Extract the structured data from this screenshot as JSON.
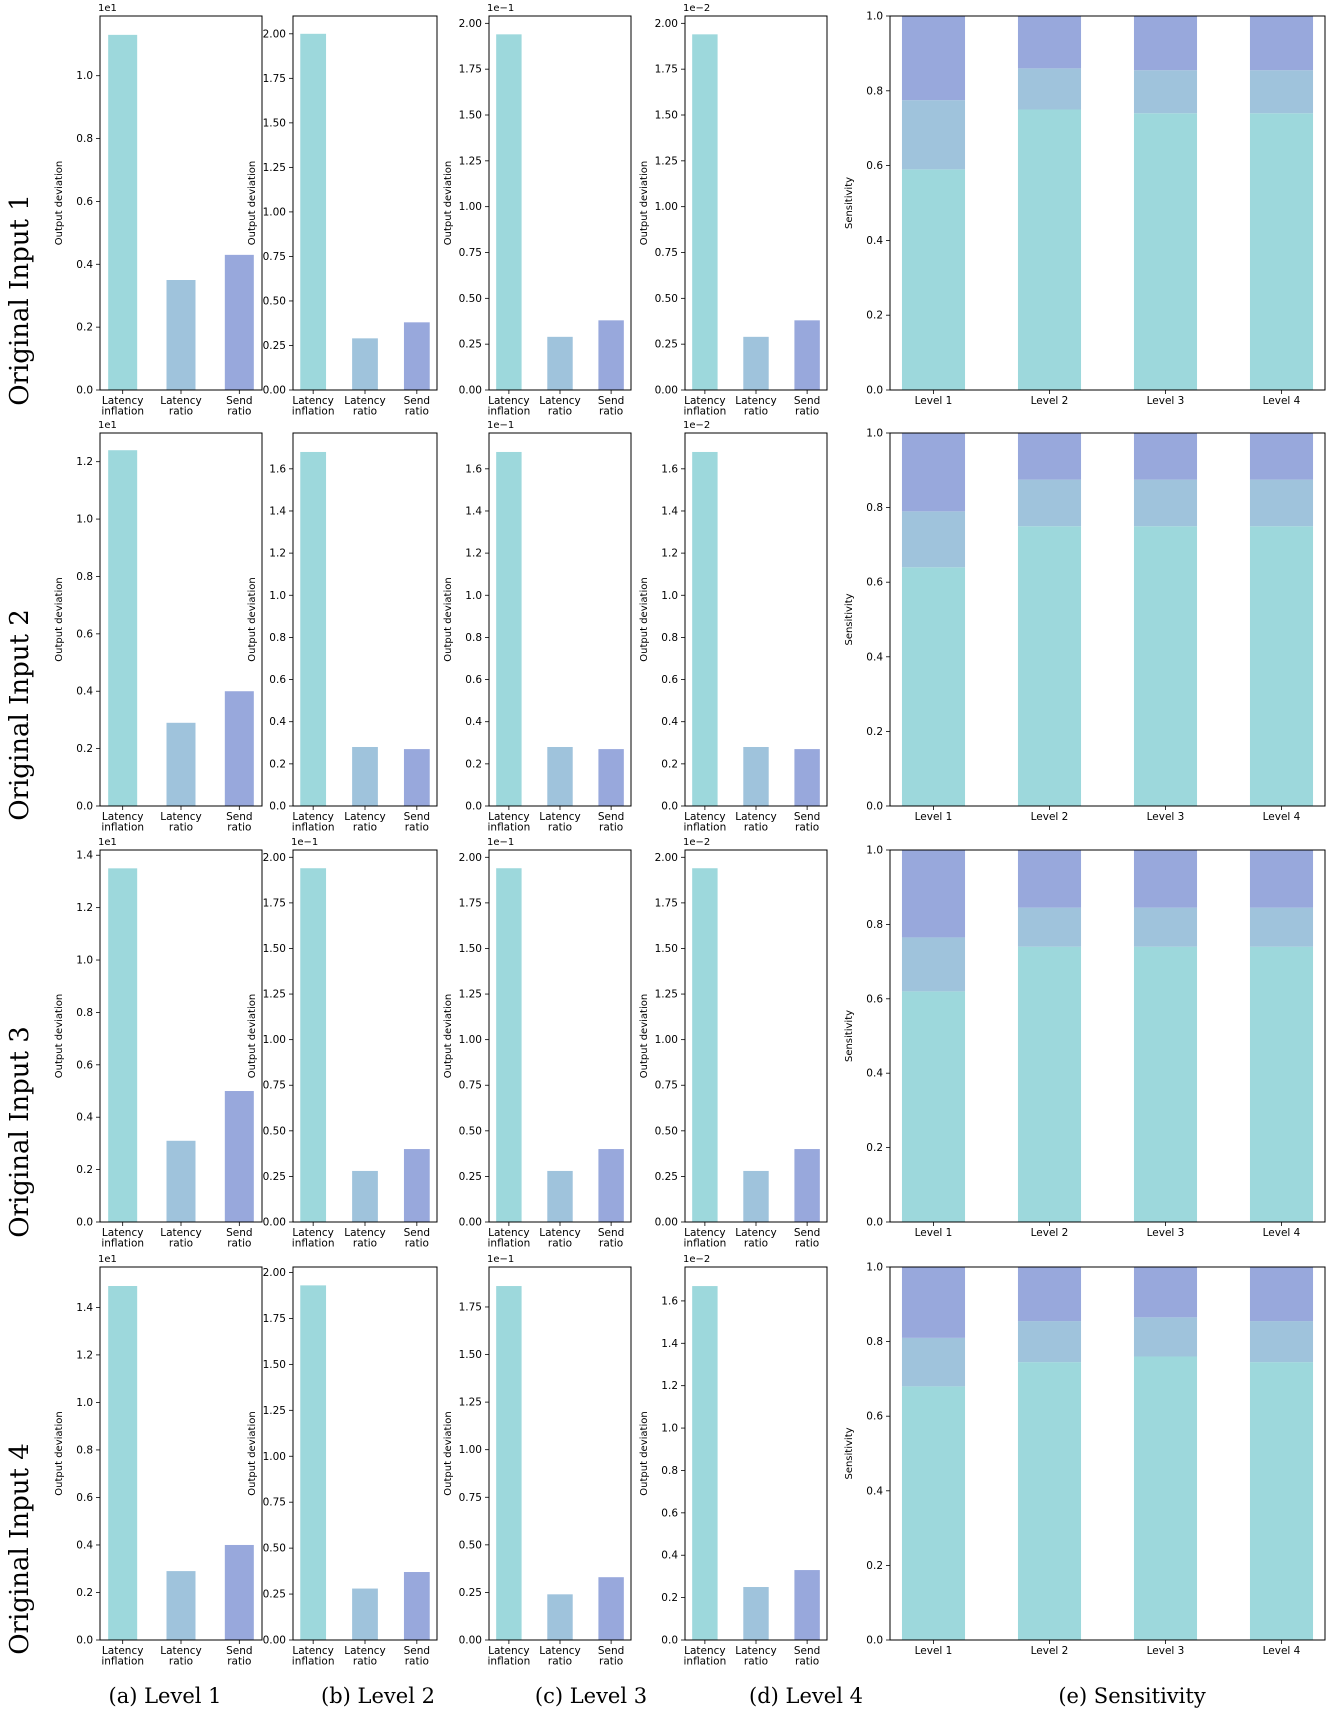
{
  "row_labels": [
    "Original Input 1",
    "Original Input 2",
    "Original Input 3",
    "Original Input 4"
  ],
  "column_captions": [
    "(a) Level 1",
    "(b) Level 2",
    "(c) Level 3",
    "(d) Level 4",
    "(e) Sensitivity"
  ],
  "colors": {
    "latency_inflation": "#9dd8dc",
    "latency_ratio": "#9fc3dc",
    "send_ratio": "#98a8dc",
    "axis": "#000000"
  },
  "deviation_ylabel": "Output deviation",
  "sensitivity_ylabel": "Sensitivity",
  "chart_data": [
    {
      "id": "r1c1",
      "type": "bar",
      "categories": [
        "Latency\ninflation",
        "Latency\nratio",
        "Send\nratio"
      ],
      "values": [
        1.13,
        0.35,
        0.43
      ],
      "ylim": [
        0,
        1.19
      ],
      "yticks": [
        0.0,
        0.2,
        0.4,
        0.6,
        0.8,
        1.0
      ],
      "ytick_labels": [
        "0.0",
        "0.2",
        "0.4",
        "0.6",
        "0.8",
        "1.0"
      ],
      "offset_label": "1e1",
      "ylabel": "Output deviation"
    },
    {
      "id": "r1c2",
      "type": "bar",
      "categories": [
        "Latency\ninflation",
        "Latency\nratio",
        "Send\nratio"
      ],
      "values": [
        2.0,
        0.29,
        0.38
      ],
      "ylim": [
        0,
        2.1
      ],
      "yticks": [
        0.0,
        0.25,
        0.5,
        0.75,
        1.0,
        1.25,
        1.5,
        1.75,
        2.0
      ],
      "ytick_labels": [
        "0.00",
        "0.25",
        "0.50",
        "0.75",
        "1.00",
        "1.25",
        "1.50",
        "1.75",
        "2.00"
      ],
      "offset_label": "",
      "ylabel": "Output deviation"
    },
    {
      "id": "r1c3",
      "type": "bar",
      "categories": [
        "Latency\ninflation",
        "Latency\nratio",
        "Send\nratio"
      ],
      "values": [
        1.94,
        0.29,
        0.38
      ],
      "ylim": [
        0,
        2.04
      ],
      "yticks": [
        0.0,
        0.25,
        0.5,
        0.75,
        1.0,
        1.25,
        1.5,
        1.75,
        2.0
      ],
      "ytick_labels": [
        "0.00",
        "0.25",
        "0.50",
        "0.75",
        "1.00",
        "1.25",
        "1.50",
        "1.75",
        "2.00"
      ],
      "offset_label": "1e−1",
      "ylabel": "Output deviation"
    },
    {
      "id": "r1c4",
      "type": "bar",
      "categories": [
        "Latency\ninflation",
        "Latency\nratio",
        "Send\nratio"
      ],
      "values": [
        1.94,
        0.29,
        0.38
      ],
      "ylim": [
        0,
        2.04
      ],
      "yticks": [
        0.0,
        0.25,
        0.5,
        0.75,
        1.0,
        1.25,
        1.5,
        1.75,
        2.0
      ],
      "ytick_labels": [
        "0.00",
        "0.25",
        "0.50",
        "0.75",
        "1.00",
        "1.25",
        "1.50",
        "1.75",
        "2.00"
      ],
      "offset_label": "1e−2",
      "ylabel": "Output deviation"
    },
    {
      "id": "r1c5",
      "type": "stacked_bar",
      "categories": [
        "Level 1",
        "Level 2",
        "Level 3",
        "Level 4"
      ],
      "series": [
        {
          "values": [
            0.59,
            0.75,
            0.74,
            0.74
          ]
        },
        {
          "values": [
            0.185,
            0.11,
            0.115,
            0.115
          ]
        },
        {
          "values": [
            0.225,
            0.14,
            0.145,
            0.145
          ]
        }
      ],
      "ylim": [
        0,
        1.0
      ],
      "yticks": [
        0.0,
        0.2,
        0.4,
        0.6,
        0.8,
        1.0
      ],
      "ytick_labels": [
        "0.0",
        "0.2",
        "0.4",
        "0.6",
        "0.8",
        "1.0"
      ],
      "ylabel": "Sensitivity"
    },
    {
      "id": "r2c1",
      "type": "bar",
      "categories": [
        "Latency\ninflation",
        "Latency\nratio",
        "Send\nratio"
      ],
      "values": [
        1.24,
        0.29,
        0.4
      ],
      "ylim": [
        0,
        1.3
      ],
      "yticks": [
        0.0,
        0.2,
        0.4,
        0.6,
        0.8,
        1.0,
        1.2
      ],
      "ytick_labels": [
        "0.0",
        "0.2",
        "0.4",
        "0.6",
        "0.8",
        "1.0",
        "1.2"
      ],
      "offset_label": "1e1",
      "ylabel": "Output deviation"
    },
    {
      "id": "r2c2",
      "type": "bar",
      "categories": [
        "Latency\ninflation",
        "Latency\nratio",
        "Send\nratio"
      ],
      "values": [
        1.68,
        0.28,
        0.27
      ],
      "ylim": [
        0,
        1.77
      ],
      "yticks": [
        0.0,
        0.2,
        0.4,
        0.6,
        0.8,
        1.0,
        1.2,
        1.4,
        1.6
      ],
      "ytick_labels": [
        "0.0",
        "0.2",
        "0.4",
        "0.6",
        "0.8",
        "1.0",
        "1.2",
        "1.4",
        "1.6"
      ],
      "offset_label": "",
      "ylabel": "Output deviation"
    },
    {
      "id": "r2c3",
      "type": "bar",
      "categories": [
        "Latency\ninflation",
        "Latency\nratio",
        "Send\nratio"
      ],
      "values": [
        1.68,
        0.28,
        0.27
      ],
      "ylim": [
        0,
        1.77
      ],
      "yticks": [
        0.0,
        0.2,
        0.4,
        0.6,
        0.8,
        1.0,
        1.2,
        1.4,
        1.6
      ],
      "ytick_labels": [
        "0.0",
        "0.2",
        "0.4",
        "0.6",
        "0.8",
        "1.0",
        "1.2",
        "1.4",
        "1.6"
      ],
      "offset_label": "1e−1",
      "ylabel": "Output deviation"
    },
    {
      "id": "r2c4",
      "type": "bar",
      "categories": [
        "Latency\ninflation",
        "Latency\nratio",
        "Send\nratio"
      ],
      "values": [
        1.68,
        0.28,
        0.27
      ],
      "ylim": [
        0,
        1.77
      ],
      "yticks": [
        0.0,
        0.2,
        0.4,
        0.6,
        0.8,
        1.0,
        1.2,
        1.4,
        1.6
      ],
      "ytick_labels": [
        "0.0",
        "0.2",
        "0.4",
        "0.6",
        "0.8",
        "1.0",
        "1.2",
        "1.4",
        "1.6"
      ],
      "offset_label": "1e−2",
      "ylabel": "Output deviation"
    },
    {
      "id": "r2c5",
      "type": "stacked_bar",
      "categories": [
        "Level 1",
        "Level 2",
        "Level 3",
        "Level 4"
      ],
      "series": [
        {
          "values": [
            0.64,
            0.75,
            0.75,
            0.75
          ]
        },
        {
          "values": [
            0.15,
            0.125,
            0.125,
            0.125
          ]
        },
        {
          "values": [
            0.21,
            0.125,
            0.125,
            0.125
          ]
        }
      ],
      "ylim": [
        0,
        1.0
      ],
      "yticks": [
        0.0,
        0.2,
        0.4,
        0.6,
        0.8,
        1.0
      ],
      "ytick_labels": [
        "0.0",
        "0.2",
        "0.4",
        "0.6",
        "0.8",
        "1.0"
      ],
      "ylabel": "Sensitivity"
    },
    {
      "id": "r3c1",
      "type": "bar",
      "categories": [
        "Latency\ninflation",
        "Latency\nratio",
        "Send\nratio"
      ],
      "values": [
        1.35,
        0.31,
        0.5
      ],
      "ylim": [
        0,
        1.42
      ],
      "yticks": [
        0.0,
        0.2,
        0.4,
        0.6,
        0.8,
        1.0,
        1.2,
        1.4
      ],
      "ytick_labels": [
        "0.0",
        "0.2",
        "0.4",
        "0.6",
        "0.8",
        "1.0",
        "1.2",
        "1.4"
      ],
      "offset_label": "1e1",
      "ylabel": "Output deviation"
    },
    {
      "id": "r3c2",
      "type": "bar",
      "categories": [
        "Latency\ninflation",
        "Latency\nratio",
        "Send\nratio"
      ],
      "values": [
        1.94,
        0.28,
        0.4
      ],
      "ylim": [
        0,
        2.04
      ],
      "yticks": [
        0.0,
        0.25,
        0.5,
        0.75,
        1.0,
        1.25,
        1.5,
        1.75,
        2.0
      ],
      "ytick_labels": [
        "0.00",
        "0.25",
        "0.50",
        "0.75",
        "1.00",
        "1.25",
        "1.50",
        "1.75",
        "2.00"
      ],
      "offset_label": "1e−1",
      "ylabel": "Output deviation"
    },
    {
      "id": "r3c3",
      "type": "bar",
      "categories": [
        "Latency\ninflation",
        "Latency\nratio",
        "Send\nratio"
      ],
      "values": [
        1.94,
        0.28,
        0.4
      ],
      "ylim": [
        0,
        2.04
      ],
      "yticks": [
        0.0,
        0.25,
        0.5,
        0.75,
        1.0,
        1.25,
        1.5,
        1.75,
        2.0
      ],
      "ytick_labels": [
        "0.00",
        "0.25",
        "0.50",
        "0.75",
        "1.00",
        "1.25",
        "1.50",
        "1.75",
        "2.00"
      ],
      "offset_label": "1e−1",
      "ylabel": "Output deviation"
    },
    {
      "id": "r3c4",
      "type": "bar",
      "categories": [
        "Latency\ninflation",
        "Latency\nratio",
        "Send\nratio"
      ],
      "values": [
        1.94,
        0.28,
        0.4
      ],
      "ylim": [
        0,
        2.04
      ],
      "yticks": [
        0.0,
        0.25,
        0.5,
        0.75,
        1.0,
        1.25,
        1.5,
        1.75,
        2.0
      ],
      "ytick_labels": [
        "0.00",
        "0.25",
        "0.50",
        "0.75",
        "1.00",
        "1.25",
        "1.50",
        "1.75",
        "2.00"
      ],
      "offset_label": "1e−2",
      "ylabel": "Output deviation"
    },
    {
      "id": "r3c5",
      "type": "stacked_bar",
      "categories": [
        "Level 1",
        "Level 2",
        "Level 3",
        "Level 4"
      ],
      "series": [
        {
          "values": [
            0.62,
            0.74,
            0.74,
            0.74
          ]
        },
        {
          "values": [
            0.145,
            0.105,
            0.105,
            0.105
          ]
        },
        {
          "values": [
            0.235,
            0.155,
            0.155,
            0.155
          ]
        }
      ],
      "ylim": [
        0,
        1.0
      ],
      "yticks": [
        0.0,
        0.2,
        0.4,
        0.6,
        0.8,
        1.0
      ],
      "ytick_labels": [
        "0.0",
        "0.2",
        "0.4",
        "0.6",
        "0.8",
        "1.0"
      ],
      "ylabel": "Sensitivity"
    },
    {
      "id": "r4c1",
      "type": "bar",
      "categories": [
        "Latency\ninflation",
        "Latency\nratio",
        "Send\nratio"
      ],
      "values": [
        1.49,
        0.29,
        0.4
      ],
      "ylim": [
        0,
        1.57
      ],
      "yticks": [
        0.0,
        0.2,
        0.4,
        0.6,
        0.8,
        1.0,
        1.2,
        1.4
      ],
      "ytick_labels": [
        "0.0",
        "0.2",
        "0.4",
        "0.6",
        "0.8",
        "1.0",
        "1.2",
        "1.4"
      ],
      "offset_label": "1e1",
      "ylabel": "Output deviation"
    },
    {
      "id": "r4c2",
      "type": "bar",
      "categories": [
        "Latency\ninflation",
        "Latency\nratio",
        "Send\nratio"
      ],
      "values": [
        1.93,
        0.28,
        0.37
      ],
      "ylim": [
        0,
        2.03
      ],
      "yticks": [
        0.0,
        0.25,
        0.5,
        0.75,
        1.0,
        1.25,
        1.5,
        1.75,
        2.0
      ],
      "ytick_labels": [
        "0.00",
        "0.25",
        "0.50",
        "0.75",
        "1.00",
        "1.25",
        "1.50",
        "1.75",
        "2.00"
      ],
      "offset_label": "",
      "ylabel": "Output deviation"
    },
    {
      "id": "r4c3",
      "type": "bar",
      "categories": [
        "Latency\ninflation",
        "Latency\nratio",
        "Send\nratio"
      ],
      "values": [
        1.86,
        0.24,
        0.33
      ],
      "ylim": [
        0,
        1.96
      ],
      "yticks": [
        0.0,
        0.25,
        0.5,
        0.75,
        1.0,
        1.25,
        1.5,
        1.75
      ],
      "ytick_labels": [
        "0.00",
        "0.25",
        "0.50",
        "0.75",
        "1.00",
        "1.25",
        "1.50",
        "1.75"
      ],
      "offset_label": "1e−1",
      "ylabel": "Output deviation"
    },
    {
      "id": "r4c4",
      "type": "bar",
      "categories": [
        "Latency\ninflation",
        "Latency\nratio",
        "Send\nratio"
      ],
      "values": [
        1.67,
        0.25,
        0.33
      ],
      "ylim": [
        0,
        1.76
      ],
      "yticks": [
        0.0,
        0.2,
        0.4,
        0.6,
        0.8,
        1.0,
        1.2,
        1.4,
        1.6
      ],
      "ytick_labels": [
        "0.0",
        "0.2",
        "0.4",
        "0.6",
        "0.8",
        "1.0",
        "1.2",
        "1.4",
        "1.6"
      ],
      "offset_label": "1e−2",
      "ylabel": "Output deviation"
    },
    {
      "id": "r4c5",
      "type": "stacked_bar",
      "categories": [
        "Level 1",
        "Level 2",
        "Level 3",
        "Level 4"
      ],
      "series": [
        {
          "values": [
            0.68,
            0.745,
            0.76,
            0.745
          ]
        },
        {
          "values": [
            0.13,
            0.11,
            0.105,
            0.11
          ]
        },
        {
          "values": [
            0.19,
            0.145,
            0.135,
            0.145
          ]
        }
      ],
      "ylim": [
        0,
        1.0
      ],
      "yticks": [
        0.0,
        0.2,
        0.4,
        0.6,
        0.8,
        1.0
      ],
      "ytick_labels": [
        "0.0",
        "0.2",
        "0.4",
        "0.6",
        "0.8",
        "1.0"
      ],
      "ylabel": "Sensitivity"
    }
  ]
}
